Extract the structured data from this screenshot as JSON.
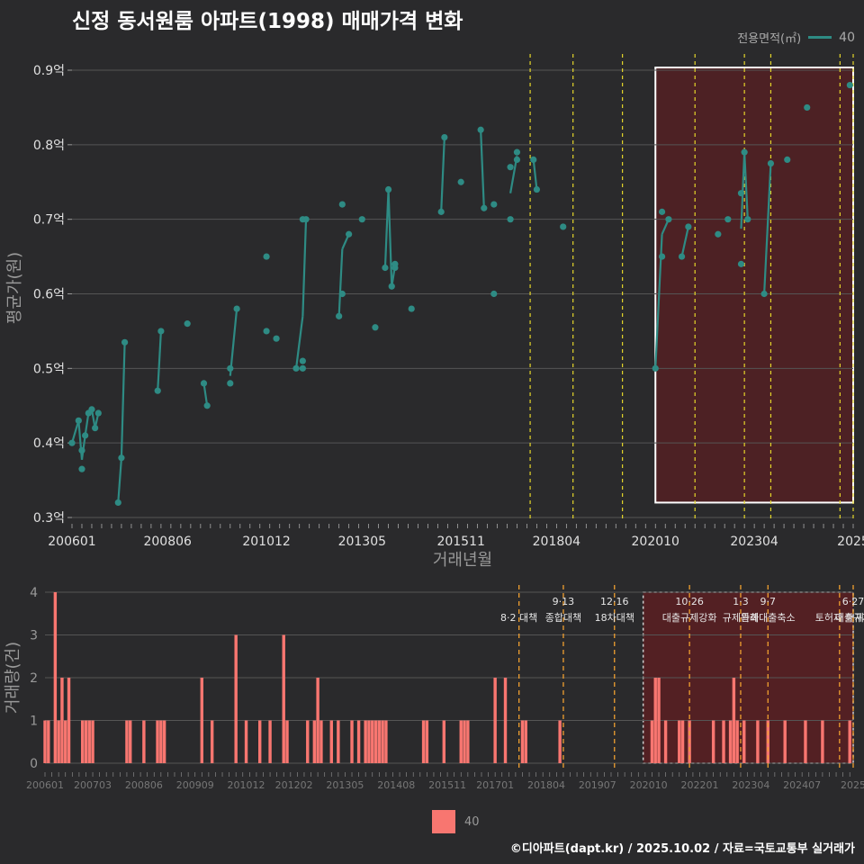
{
  "title": "신정 동서원룸 아파트(1998) 매매가격 변화",
  "legend_top": {
    "title": "전용면적(㎡)",
    "value": "40"
  },
  "legend_bottom": {
    "value": "40"
  },
  "credit": "©디아파트(dapt.kr) / 2025.10.02 / 자료=국토교통부 실거래가",
  "colors": {
    "background": "#2a2a2c",
    "line": "#2e8b84",
    "bar": "#f87670",
    "policy": "#e5d62a",
    "policy_bottom": "#f0a030",
    "highlight_fill": "#5a1f22",
    "grid": "#555555"
  },
  "chart_data": [
    {
      "type": "line",
      "title": "신정 동서원룸 아파트(1998) 매매가격 변화",
      "xlabel": "거래년월",
      "ylabel": "평균가(원)",
      "x_tick_labels": [
        "200601",
        "200806",
        "201012",
        "201305",
        "201511",
        "201804",
        "202010",
        "202304",
        "2025"
      ],
      "y_tick_labels": [
        "0.3억",
        "0.4억",
        "0.5억",
        "0.6억",
        "0.7억",
        "0.8억",
        "0.9억"
      ],
      "ylim": [
        0.3,
        0.9
      ],
      "xlim": [
        "2006-01",
        "2025-10"
      ],
      "grid": true,
      "legend_placement": "top-right",
      "policy_lines": [
        "2017-08",
        "2018-09",
        "2019-12",
        "2021-10",
        "2023-01",
        "2023-09",
        "2025-06",
        "2025-10"
      ],
      "highlight_range": [
        "2020-10",
        "2025-10"
      ],
      "series": [
        {
          "name": "40",
          "points": [
            [
              "2006-01",
              0.4
            ],
            [
              "2006-03",
              0.43
            ],
            [
              "2006-04",
              0.39
            ],
            [
              "2006-04",
              0.365
            ],
            [
              "2006-05",
              0.41
            ],
            [
              "2006-06",
              0.44
            ],
            [
              "2006-07",
              0.445
            ],
            [
              "2006-08",
              0.42
            ],
            [
              "2006-09",
              0.44
            ],
            [
              "2007-03",
              0.32
            ],
            [
              "2007-04",
              0.38
            ],
            [
              "2007-05",
              0.535
            ],
            [
              "2008-03",
              0.47
            ],
            [
              "2008-04",
              0.55
            ],
            [
              "2008-12",
              0.56
            ],
            [
              "2009-05",
              0.48
            ],
            [
              "2009-06",
              0.45
            ],
            [
              "2010-01",
              0.48
            ],
            [
              "2010-01",
              0.5
            ],
            [
              "2010-03",
              0.58
            ],
            [
              "2010-12",
              0.65
            ],
            [
              "2010-12",
              0.55
            ],
            [
              "2011-03",
              0.54
            ],
            [
              "2011-09",
              0.5
            ],
            [
              "2011-11",
              0.5
            ],
            [
              "2011-11",
              0.51
            ],
            [
              "2011-11",
              0.7
            ],
            [
              "2011-12",
              0.7
            ],
            [
              "2012-10",
              0.57
            ],
            [
              "2012-11",
              0.6
            ],
            [
              "2012-11",
              0.72
            ],
            [
              "2013-01",
              0.68
            ],
            [
              "2013-05",
              0.7
            ],
            [
              "2013-09",
              0.555
            ],
            [
              "2013-12",
              0.635
            ],
            [
              "2014-01",
              0.74
            ],
            [
              "2014-02",
              0.61
            ],
            [
              "2014-03",
              0.635
            ],
            [
              "2014-03",
              0.64
            ],
            [
              "2014-08",
              0.58
            ],
            [
              "2015-05",
              0.71
            ],
            [
              "2015-06",
              0.81
            ],
            [
              "2015-11",
              0.75
            ],
            [
              "2016-05",
              0.82
            ],
            [
              "2016-06",
              0.715
            ],
            [
              "2016-09",
              0.6
            ],
            [
              "2016-09",
              0.72
            ],
            [
              "2017-02",
              0.7
            ],
            [
              "2017-02",
              0.77
            ],
            [
              "2017-04",
              0.78
            ],
            [
              "2017-04",
              0.79
            ],
            [
              "2017-09",
              0.78
            ],
            [
              "2017-10",
              0.74
            ],
            [
              "2018-06",
              0.69
            ],
            [
              "2020-10",
              0.5
            ],
            [
              "2020-12",
              0.65
            ],
            [
              "2020-12",
              0.71
            ],
            [
              "2021-02",
              0.7
            ],
            [
              "2021-06",
              0.65
            ],
            [
              "2021-08",
              0.69
            ],
            [
              "2022-05",
              0.68
            ],
            [
              "2022-08",
              0.7
            ],
            [
              "2022-12",
              0.735
            ],
            [
              "2022-12",
              0.64
            ],
            [
              "2023-01",
              0.79
            ],
            [
              "2023-02",
              0.7
            ],
            [
              "2023-07",
              0.6
            ],
            [
              "2023-09",
              0.775
            ],
            [
              "2024-02",
              0.78
            ],
            [
              "2024-08",
              0.85
            ],
            [
              "2025-09",
              0.88
            ]
          ]
        }
      ]
    },
    {
      "type": "bar",
      "xlabel": "",
      "ylabel": "거래량(건)",
      "x_tick_labels": [
        "200601",
        "200703",
        "200806",
        "200909",
        "201012",
        "201202",
        "201305",
        "201408",
        "201511",
        "201701",
        "201804",
        "201907",
        "202010",
        "202201",
        "202304",
        "202407",
        "2025"
      ],
      "y_tick_labels": [
        "0",
        "1",
        "2",
        "3",
        "4"
      ],
      "ylim": [
        0,
        4
      ],
      "grid": true,
      "legend_placement": "bottom-center",
      "policy_labels": [
        {
          "date": "2017-08",
          "line1": "",
          "line2": "8·2 대책"
        },
        {
          "date": "2018-09",
          "line1": "9·13",
          "line2": "종합대책"
        },
        {
          "date": "2019-12",
          "line1": "12·16",
          "line2": "18차대책"
        },
        {
          "date": "2021-10",
          "line1": "10·26",
          "line2": "대출규제강화"
        },
        {
          "date": "2023-01",
          "line1": "1·3",
          "line2": "규제완화"
        },
        {
          "date": "2023-09",
          "line1": "9·7",
          "line2": "특례대출축소"
        },
        {
          "date": "2025-06",
          "line1": "",
          "line2": "토허제 해제"
        },
        {
          "date": "2025-10",
          "line1": "6·27",
          "line2": "대출규제"
        }
      ],
      "highlight_range": [
        "2020-10",
        "2025-10"
      ],
      "series": [
        {
          "name": "40",
          "points": [
            [
              "2006-01",
              1
            ],
            [
              "2006-02",
              1
            ],
            [
              "2006-04",
              4
            ],
            [
              "2006-05",
              1
            ],
            [
              "2006-06",
              2
            ],
            [
              "2006-07",
              1
            ],
            [
              "2006-08",
              2
            ],
            [
              "2006-12",
              1
            ],
            [
              "2007-01",
              1
            ],
            [
              "2007-02",
              1
            ],
            [
              "2007-03",
              1
            ],
            [
              "2008-01",
              1
            ],
            [
              "2008-02",
              1
            ],
            [
              "2008-06",
              1
            ],
            [
              "2008-10",
              1
            ],
            [
              "2008-11",
              1
            ],
            [
              "2008-12",
              1
            ],
            [
              "2009-11",
              2
            ],
            [
              "2010-02",
              1
            ],
            [
              "2010-09",
              3
            ],
            [
              "2010-12",
              1
            ],
            [
              "2011-04",
              1
            ],
            [
              "2011-07",
              1
            ],
            [
              "2011-11",
              3
            ],
            [
              "2011-12",
              1
            ],
            [
              "2012-06",
              1
            ],
            [
              "2012-08",
              1
            ],
            [
              "2012-09",
              2
            ],
            [
              "2012-10",
              1
            ],
            [
              "2013-01",
              1
            ],
            [
              "2013-03",
              1
            ],
            [
              "2013-07",
              1
            ],
            [
              "2013-09",
              1
            ],
            [
              "2013-11",
              1
            ],
            [
              "2013-12",
              1
            ],
            [
              "2014-01",
              1
            ],
            [
              "2014-02",
              1
            ],
            [
              "2014-03",
              1
            ],
            [
              "2014-04",
              1
            ],
            [
              "2014-05",
              1
            ],
            [
              "2015-04",
              1
            ],
            [
              "2015-05",
              1
            ],
            [
              "2015-10",
              1
            ],
            [
              "2016-03",
              1
            ],
            [
              "2016-04",
              1
            ],
            [
              "2016-05",
              1
            ],
            [
              "2017-01",
              2
            ],
            [
              "2017-04",
              2
            ],
            [
              "2017-09",
              1
            ],
            [
              "2017-10",
              1
            ],
            [
              "2018-08",
              1
            ],
            [
              "2020-11",
              1
            ],
            [
              "2020-12",
              2
            ],
            [
              "2021-01",
              2
            ],
            [
              "2021-03",
              1
            ],
            [
              "2021-07",
              1
            ],
            [
              "2021-08",
              1
            ],
            [
              "2021-10",
              1
            ],
            [
              "2022-05",
              1
            ],
            [
              "2022-08",
              1
            ],
            [
              "2022-10",
              1
            ],
            [
              "2022-11",
              2
            ],
            [
              "2022-12",
              1
            ],
            [
              "2023-02",
              1
            ],
            [
              "2023-06",
              1
            ],
            [
              "2023-09",
              1
            ],
            [
              "2024-02",
              1
            ],
            [
              "2024-08",
              1
            ],
            [
              "2025-01",
              1
            ],
            [
              "2025-09",
              1
            ]
          ]
        }
      ]
    }
  ]
}
